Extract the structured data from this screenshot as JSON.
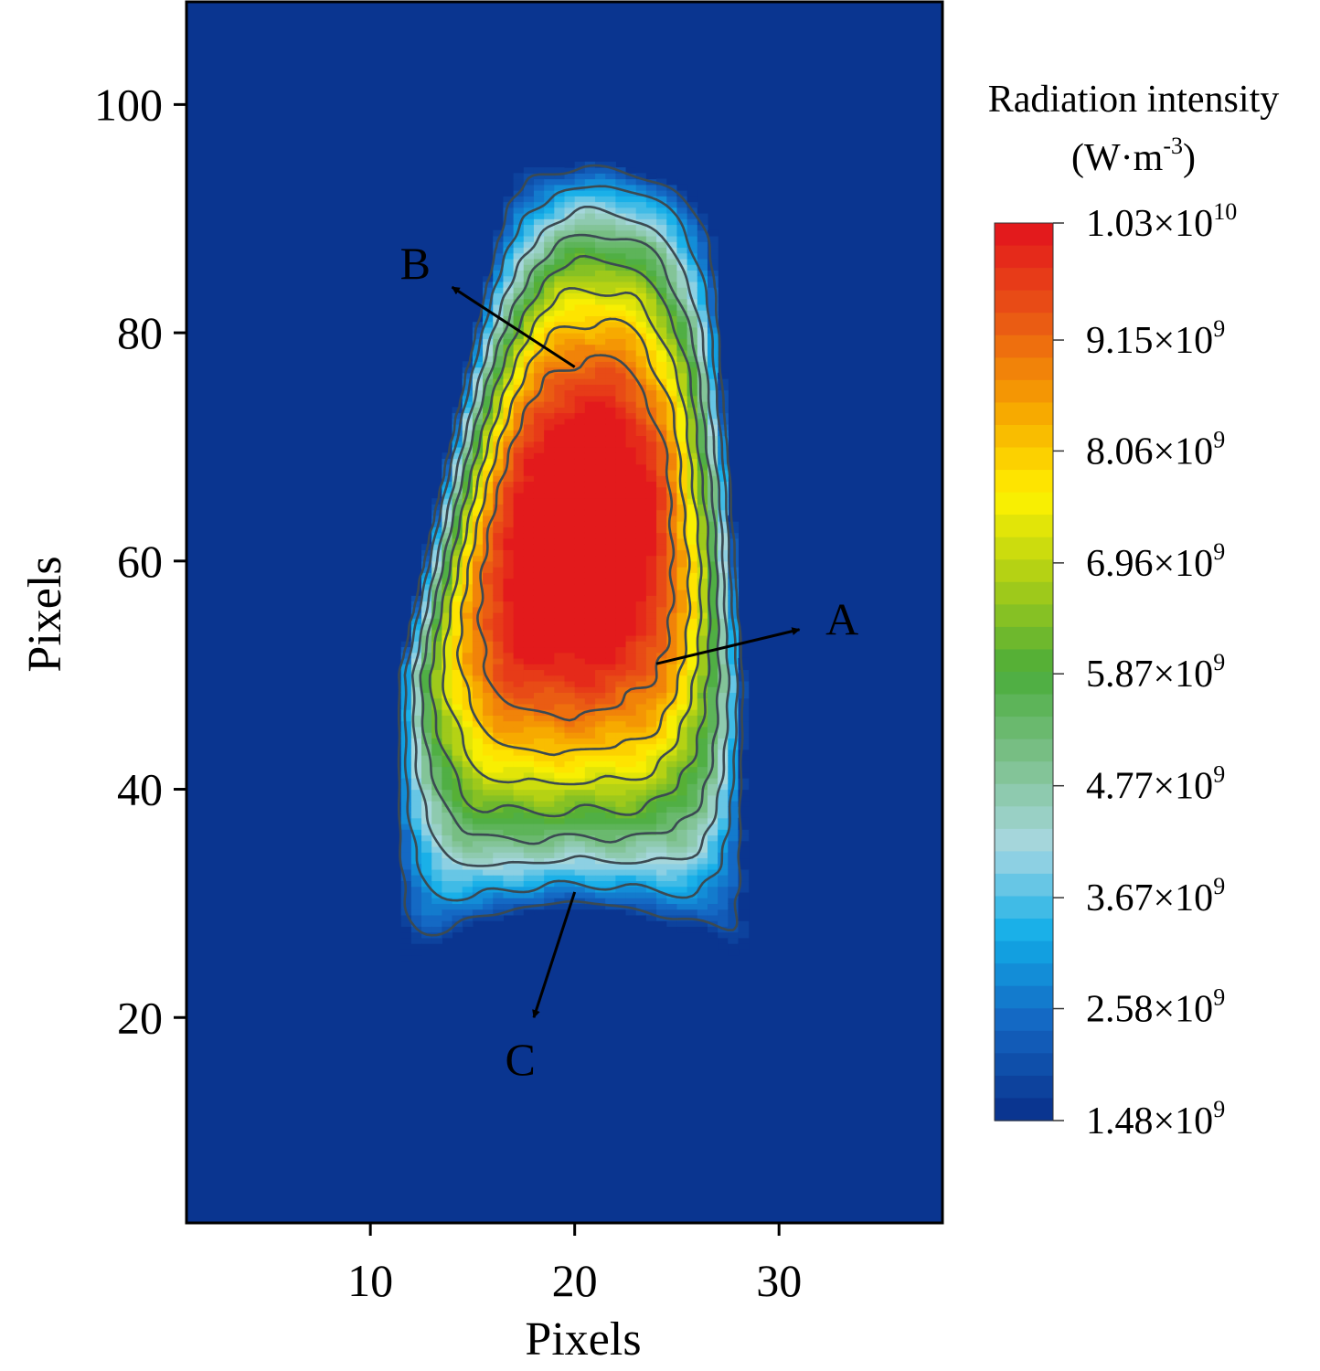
{
  "chart_data": {
    "type": "heatmap",
    "title": "",
    "xlabel": "Pixels",
    "ylabel": "Pixels",
    "xlim": [
      1,
      38
    ],
    "ylim": [
      2,
      109
    ],
    "x_ticks": [
      10,
      20,
      30
    ],
    "y_ticks": [
      20,
      40,
      60,
      80,
      100
    ],
    "grid": false,
    "colorbar": {
      "title_line1": "Radiation intensity",
      "title_line2_prefix": "(W·m",
      "title_line2_sup": "-3",
      "title_line2_suffix": ")",
      "min": 1480000000,
      "max": 10300000000,
      "placement": "right",
      "ticks": [
        {
          "value": 10300000000,
          "mantissa": "1.03×10",
          "exp": "10"
        },
        {
          "value": 9150000000,
          "mantissa": "9.15×10",
          "exp": "9"
        },
        {
          "value": 8060000000,
          "mantissa": "8.06×10",
          "exp": "9"
        },
        {
          "value": 6960000000,
          "mantissa": "6.96×10",
          "exp": "9"
        },
        {
          "value": 5870000000,
          "mantissa": "5.87×10",
          "exp": "9"
        },
        {
          "value": 4770000000,
          "mantissa": "4.77×10",
          "exp": "9"
        },
        {
          "value": 3670000000,
          "mantissa": "3.67×10",
          "exp": "9"
        },
        {
          "value": 2580000000,
          "mantissa": "2.58×10",
          "exp": "9"
        },
        {
          "value": 1480000000,
          "mantissa": "1.48×10",
          "exp": "9"
        }
      ]
    },
    "colors": {
      "background": "#0a3590",
      "stops": [
        "#0a3590",
        "#1467c3",
        "#12aee8",
        "#a8d8e2",
        "#7cc08b",
        "#4aac3a",
        "#a8cc18",
        "#fff200",
        "#f7a600",
        "#ea5a14",
        "#e31a1c"
      ]
    },
    "contour_levels": [
      0.06,
      0.18,
      0.31,
      0.42,
      0.53,
      0.64,
      0.75,
      0.86
    ],
    "annotations": [
      {
        "label": "A",
        "from": [
          24,
          51
        ],
        "to": [
          31,
          54
        ]
      },
      {
        "label": "B",
        "from": [
          20,
          77
        ],
        "to": [
          14,
          84
        ]
      },
      {
        "label": "C",
        "from": [
          20,
          31
        ],
        "to": [
          18,
          20
        ]
      }
    ]
  }
}
